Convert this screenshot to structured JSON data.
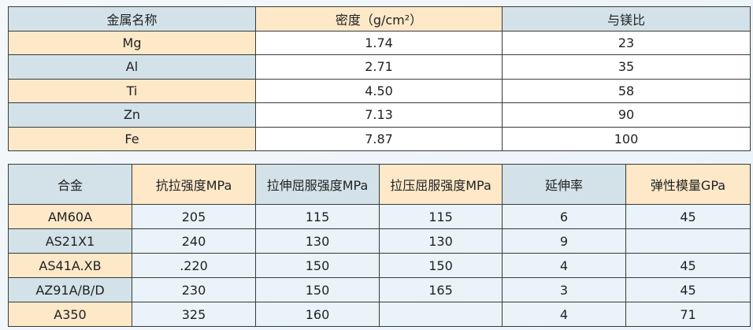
{
  "density_table": {
    "headers": [
      "金属名称",
      "密度（g/cm²）",
      "与镁比"
    ],
    "rows": [
      [
        "Mg",
        "1.74",
        "23"
      ],
      [
        "Al",
        "2.71",
        "35"
      ],
      [
        "Ti",
        "4.50",
        "58"
      ],
      [
        "Zn",
        "7.13",
        "90"
      ],
      [
        "Fe",
        "7.87",
        "100"
      ]
    ]
  },
  "alloy_table": {
    "headers": [
      "合金",
      "抗拉强度MPa",
      "拉伸屈服强度MPa",
      "拉压屈服强度MPa",
      "延伸率",
      "弹性模量GPa"
    ],
    "rows": [
      [
        "AM60A",
        "205",
        "115",
        "115",
        "6",
        "45"
      ],
      [
        "AS21X1",
        "240",
        "130",
        "130",
        "9",
        ""
      ],
      [
        "AS41A.XB",
        ".220",
        "150",
        "150",
        "4",
        "45"
      ],
      [
        "AZ91A/B/D",
        "230",
        "150",
        "165",
        "3",
        "45"
      ],
      [
        "A350",
        "325",
        "160",
        "",
        "4",
        "71"
      ]
    ]
  },
  "colors": {
    "blue_cell": "#d3e2e9",
    "peach_cell": "#fde8c8",
    "data_cell": "#e9f3f9"
  }
}
